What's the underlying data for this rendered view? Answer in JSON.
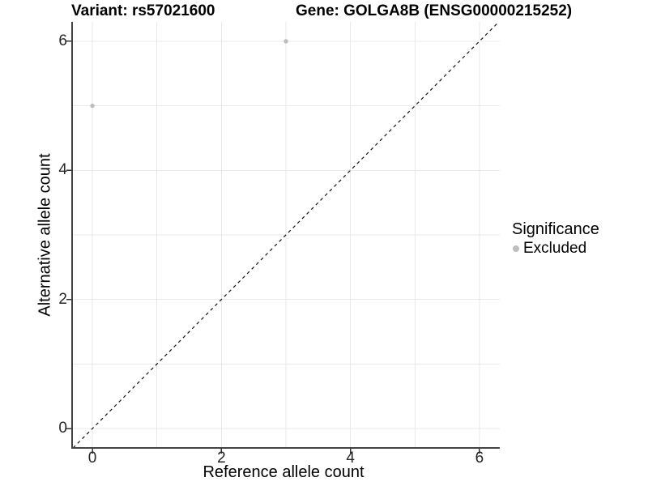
{
  "chart_data": {
    "type": "scatter",
    "title_left": "Variant: rs57021600",
    "title_right": "Gene: GOLGA8B (ENSG00000215252)",
    "xlabel": "Reference allele count",
    "ylabel": "Alternative allele count",
    "xlim": [
      -0.315,
      6.315
    ],
    "ylim": [
      -0.3,
      6.3
    ],
    "xticks": [
      0,
      2,
      4,
      6
    ],
    "yticks": [
      0,
      2,
      4,
      6
    ],
    "grid": {
      "x": [
        0,
        1,
        2,
        3,
        4,
        5,
        6
      ],
      "y": [
        0,
        1,
        2,
        3,
        4,
        5,
        6
      ],
      "visible": true
    },
    "series": [
      {
        "name": "Excluded",
        "color": "#BDBDBD",
        "points": [
          {
            "x": 0,
            "y": 5
          },
          {
            "x": 3,
            "y": 6
          }
        ]
      }
    ],
    "reference_line": {
      "kind": "identity y = x",
      "style": "dashed",
      "color": "#111111"
    },
    "legend": {
      "title": "Significance",
      "position": "right",
      "entries": [
        {
          "label": "Excluded",
          "color": "#BDBDBD"
        }
      ]
    }
  },
  "colors": {
    "background": "#FFFFFF",
    "grid": "#E9E9E9",
    "axis_line": "#444444",
    "tick_mark": "#333333",
    "tick_label": "#262626",
    "text": "#000000",
    "point": "#BDBDBD"
  }
}
